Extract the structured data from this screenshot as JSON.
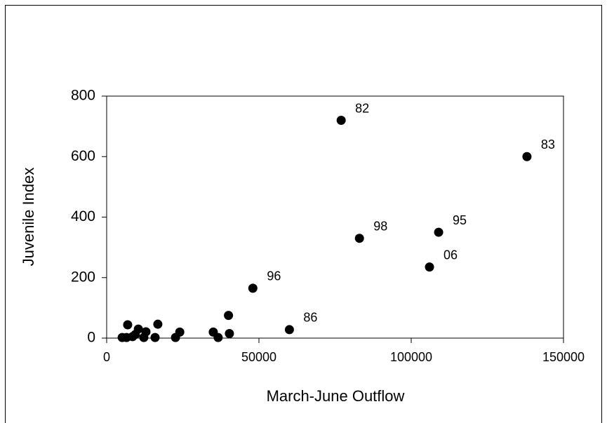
{
  "chart_data": {
    "type": "scatter",
    "xlabel": "March-June Outflow",
    "ylabel": "Juvenile Index",
    "xlim": [
      0,
      150000
    ],
    "xticks": [
      0,
      50000,
      100000,
      150000
    ],
    "ylim": [
      0,
      800
    ],
    "yticks": [
      0,
      200,
      400,
      600,
      800
    ],
    "color": "#000000",
    "x": [
      77000,
      138000,
      83000,
      109000,
      106000,
      48000,
      60000,
      40000,
      40300,
      35000,
      36600,
      24000,
      22600,
      16800,
      15900,
      12900,
      12200,
      10400,
      9400,
      8500,
      6900,
      6500,
      5100
    ],
    "y": [
      720,
      600,
      330,
      350,
      235,
      165,
      28,
      75,
      15,
      20,
      2,
      20,
      2,
      46,
      2,
      21,
      2,
      30,
      12,
      5,
      44,
      2,
      2
    ],
    "labels": [
      "82",
      "83",
      "98",
      "95",
      "06",
      "96",
      "86",
      null,
      null,
      null,
      null,
      null,
      null,
      null,
      null,
      null,
      null,
      null,
      null,
      null,
      null,
      null,
      null
    ]
  }
}
